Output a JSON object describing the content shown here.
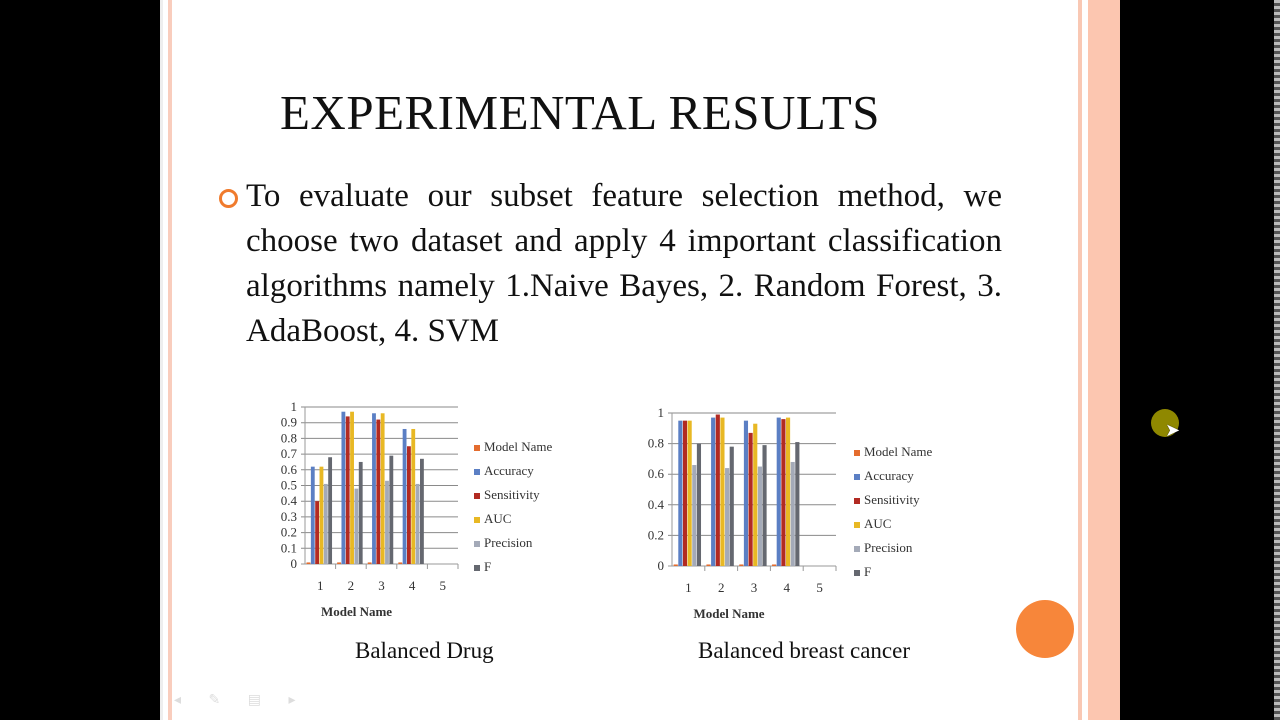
{
  "slide": {
    "title": "EXPERIMENTAL RESULTS",
    "bullet": "To evaluate our subset feature selection method, we choose two dataset and apply 4 important classification algorithms namely 1.Naive Bayes, 2. Random Forest, 3. AdaBoost, 4. SVM",
    "captions": [
      "Balanced Drug",
      "Balanced breast cancer"
    ],
    "colors": {
      "accent": "#f07b2d",
      "border": "#f9c8b4"
    }
  },
  "chart_data": [
    {
      "type": "bar",
      "title": "Balanced Drug",
      "xlabel": "Model Name",
      "ylabel": "",
      "categories": [
        "1",
        "2",
        "3",
        "4",
        "5"
      ],
      "ylim": [
        0,
        1
      ],
      "yticks": [
        "0",
        "0.1",
        "0.2",
        "0.3",
        "0.4",
        "0.5",
        "0.6",
        "0.7",
        "0.8",
        "0.9",
        "1"
      ],
      "grid": true,
      "legend": "right",
      "series": [
        {
          "name": "Model Name",
          "color": "#e46c2e",
          "values": [
            0.01,
            0.01,
            0.01,
            0.01,
            null
          ]
        },
        {
          "name": "Accuracy",
          "color": "#5b7fc4",
          "values": [
            0.62,
            0.97,
            0.96,
            0.86,
            null
          ]
        },
        {
          "name": "Sensitivity",
          "color": "#b22a22",
          "values": [
            0.4,
            0.94,
            0.92,
            0.75,
            null
          ]
        },
        {
          "name": "AUC",
          "color": "#e8b824",
          "values": [
            0.62,
            0.97,
            0.96,
            0.86,
            null
          ]
        },
        {
          "name": "Precision",
          "color": "#a4aab8",
          "values": [
            0.51,
            0.48,
            0.53,
            0.51,
            null
          ]
        },
        {
          "name": "F",
          "color": "#656870",
          "values": [
            0.68,
            0.65,
            0.69,
            0.67,
            null
          ]
        }
      ]
    },
    {
      "type": "bar",
      "title": "Balanced breast cancer",
      "xlabel": "Model Name",
      "ylabel": "",
      "categories": [
        "1",
        "2",
        "3",
        "4",
        "5"
      ],
      "ylim": [
        0,
        1
      ],
      "yticks": [
        "0",
        "0.2",
        "0.4",
        "0.6",
        "0.8",
        "1"
      ],
      "grid": true,
      "legend": "right",
      "series": [
        {
          "name": "Model Name",
          "color": "#e46c2e",
          "values": [
            0.01,
            0.01,
            0.01,
            0.01,
            null
          ]
        },
        {
          "name": "Accuracy",
          "color": "#5b7fc4",
          "values": [
            0.95,
            0.97,
            0.95,
            0.97,
            null
          ]
        },
        {
          "name": "Sensitivity",
          "color": "#b22a22",
          "values": [
            0.95,
            0.99,
            0.87,
            0.96,
            null
          ]
        },
        {
          "name": "AUC",
          "color": "#e8b824",
          "values": [
            0.95,
            0.97,
            0.93,
            0.97,
            null
          ]
        },
        {
          "name": "Precision",
          "color": "#a4aab8",
          "values": [
            0.66,
            0.64,
            0.65,
            0.68,
            null
          ]
        },
        {
          "name": "F",
          "color": "#656870",
          "values": [
            0.8,
            0.78,
            0.79,
            0.81,
            null
          ]
        }
      ]
    }
  ]
}
